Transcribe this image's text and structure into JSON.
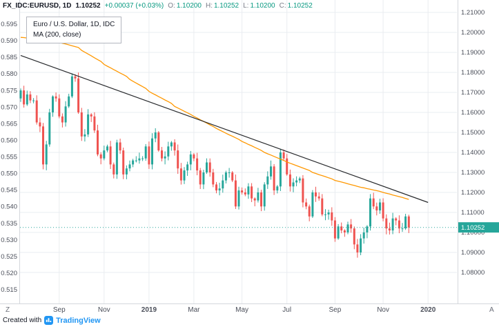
{
  "header": {
    "symbol": "FX_IDC:EURUSD, 1D",
    "price": "1.10252",
    "change": "+0.00037 (+0.03%)",
    "ohlc": [
      {
        "label": "O:",
        "value": "1.10200"
      },
      {
        "label": "H:",
        "value": "1.10252"
      },
      {
        "label": "L:",
        "value": "1.10200"
      },
      {
        "label": "C:",
        "value": "1.10252"
      }
    ]
  },
  "legend": {
    "line1": "Euro / U.S. Dollar, 1D, IDC",
    "line2": "MA (200, close)"
  },
  "axis_buttons": {
    "left": "Z",
    "right": "A"
  },
  "footer": {
    "created_with": "Created with",
    "brand": "TradingView"
  },
  "colors": {
    "up": "#26a69a",
    "down": "#ef5350",
    "ma": "#ff9800",
    "trendline": "#26282b",
    "price_line": "#26a69a",
    "price_label_bg": "#26a69a",
    "grid": "#e9ecf0",
    "axis_line": "#d4d7dc",
    "axis_text": "#4a4e59",
    "green": "#089981",
    "muted": "#787b86",
    "brand_blue": "#2196f3"
  },
  "chart_data": {
    "type": "candlestick",
    "title": "Euro / U.S. Dollar, 1D, IDC",
    "overlay": "MA (200, close)",
    "last_price": 1.10252,
    "last_price_label": "1.10252",
    "open_first": 1.167,
    "price_axis_range": [
      1.08,
      1.21
    ],
    "right_axis_ticks": [
      "1.21000",
      "1.20000",
      "1.19000",
      "1.18000",
      "1.17000",
      "1.16000",
      "1.15000",
      "1.14000",
      "1.13000",
      "1.12000",
      "1.11000",
      "1.10000",
      "1.09000",
      "1.08000"
    ],
    "left_axis_ticks": [
      "0.595",
      "0.590",
      "0.585",
      "0.580",
      "0.575",
      "0.570",
      "0.565",
      "0.560",
      "0.555",
      "0.550",
      "0.545",
      "0.540",
      "0.535",
      "0.530",
      "0.525",
      "0.520",
      "0.515"
    ],
    "x_ticks": [
      {
        "label": "Sep",
        "i": 12
      },
      {
        "label": "Nov",
        "i": 26
      },
      {
        "label": "2019",
        "i": 40,
        "year": true
      },
      {
        "label": "Mar",
        "i": 54
      },
      {
        "label": "May",
        "i": 69
      },
      {
        "label": "Jul",
        "i": 83
      },
      {
        "label": "Sep",
        "i": 98
      },
      {
        "label": "Nov",
        "i": 113
      },
      {
        "label": "2020",
        "i": 127,
        "year": true
      }
    ],
    "trendline": {
      "i1": 0,
      "p1": 1.1885,
      "i2": 127,
      "p2": 1.115
    },
    "closes": [
      1.171,
      1.164,
      1.169,
      1.166,
      1.166,
      1.155,
      1.153,
      1.134,
      1.144,
      1.16,
      1.168,
      1.167,
      1.158,
      1.155,
      1.163,
      1.168,
      1.178,
      1.177,
      1.16,
      1.148,
      1.149,
      1.159,
      1.158,
      1.151,
      1.139,
      1.137,
      1.141,
      1.143,
      1.134,
      1.129,
      1.145,
      1.141,
      1.129,
      1.132,
      1.134,
      1.136,
      1.136,
      1.137,
      1.137,
      1.143,
      1.134,
      1.147,
      1.15,
      1.141,
      1.137,
      1.138,
      1.143,
      1.145,
      1.141,
      1.132,
      1.126,
      1.131,
      1.134,
      1.139,
      1.137,
      1.131,
      1.124,
      1.13,
      1.135,
      1.13,
      1.124,
      1.121,
      1.122,
      1.126,
      1.13,
      1.13,
      1.126,
      1.113,
      1.121,
      1.12,
      1.119,
      1.123,
      1.117,
      1.116,
      1.12,
      1.113,
      1.124,
      1.128,
      1.133,
      1.121,
      1.123,
      1.14,
      1.137,
      1.129,
      1.123,
      1.125,
      1.126,
      1.127,
      1.115,
      1.113,
      1.108,
      1.12,
      1.118,
      1.117,
      1.109,
      1.109,
      1.11,
      1.106,
      1.097,
      1.103,
      1.101,
      1.1,
      1.104,
      1.102,
      1.094,
      1.09,
      1.097,
      1.1,
      1.103,
      1.117,
      1.113,
      1.111,
      1.115,
      1.107,
      1.102,
      1.101,
      1.107,
      1.106,
      1.102,
      1.102,
      1.108,
      1.1025
    ],
    "ma200": [
      1.1975,
      1.1974,
      1.1972,
      1.1971,
      1.1969,
      1.1968,
      1.1966,
      1.1965,
      1.1963,
      1.1962,
      1.1961,
      1.196,
      1.195,
      1.1946,
      1.1942,
      1.1938,
      1.1933,
      1.1929,
      1.1925,
      1.191,
      1.1901,
      1.1892,
      1.1883,
      1.1873,
      1.1864,
      1.1855,
      1.184,
      1.1831,
      1.1823,
      1.1814,
      1.1806,
      1.1797,
      1.1789,
      1.178,
      1.1765,
      1.1756,
      1.1747,
      1.1738,
      1.1729,
      1.172,
      1.1705,
      1.1696,
      1.1688,
      1.1679,
      1.1671,
      1.1662,
      1.1654,
      1.1645,
      1.163,
      1.1622,
      1.1614,
      1.1606,
      1.1598,
      1.159,
      1.158,
      1.1572,
      1.1563,
      1.1555,
      1.1547,
      1.1538,
      1.153,
      1.152,
      1.1512,
      1.1504,
      1.1496,
      1.1488,
      1.1481,
      1.1473,
      1.1465,
      1.1455,
      1.1448,
      1.144,
      1.1433,
      1.1425,
      1.1418,
      1.141,
      1.14,
      1.1393,
      1.1387,
      1.138,
      1.1373,
      1.1367,
      1.136,
      1.1352,
      1.1346,
      1.134,
      1.1334,
      1.1328,
      1.1322,
      1.1316,
      1.131,
      1.13,
      1.1295,
      1.1289,
      1.1284,
      1.1279,
      1.1273,
      1.1268,
      1.126,
      1.1256,
      1.1252,
      1.1248,
      1.1243,
      1.1239,
      1.1235,
      1.123,
      1.1226,
      1.1223,
      1.1219,
      1.1216,
      1.1212,
      1.1209,
      1.1205,
      1.12,
      1.1196,
      1.1192,
      1.1187,
      1.1183,
      1.1179,
      1.1175,
      1.117,
      1.1165
    ]
  }
}
